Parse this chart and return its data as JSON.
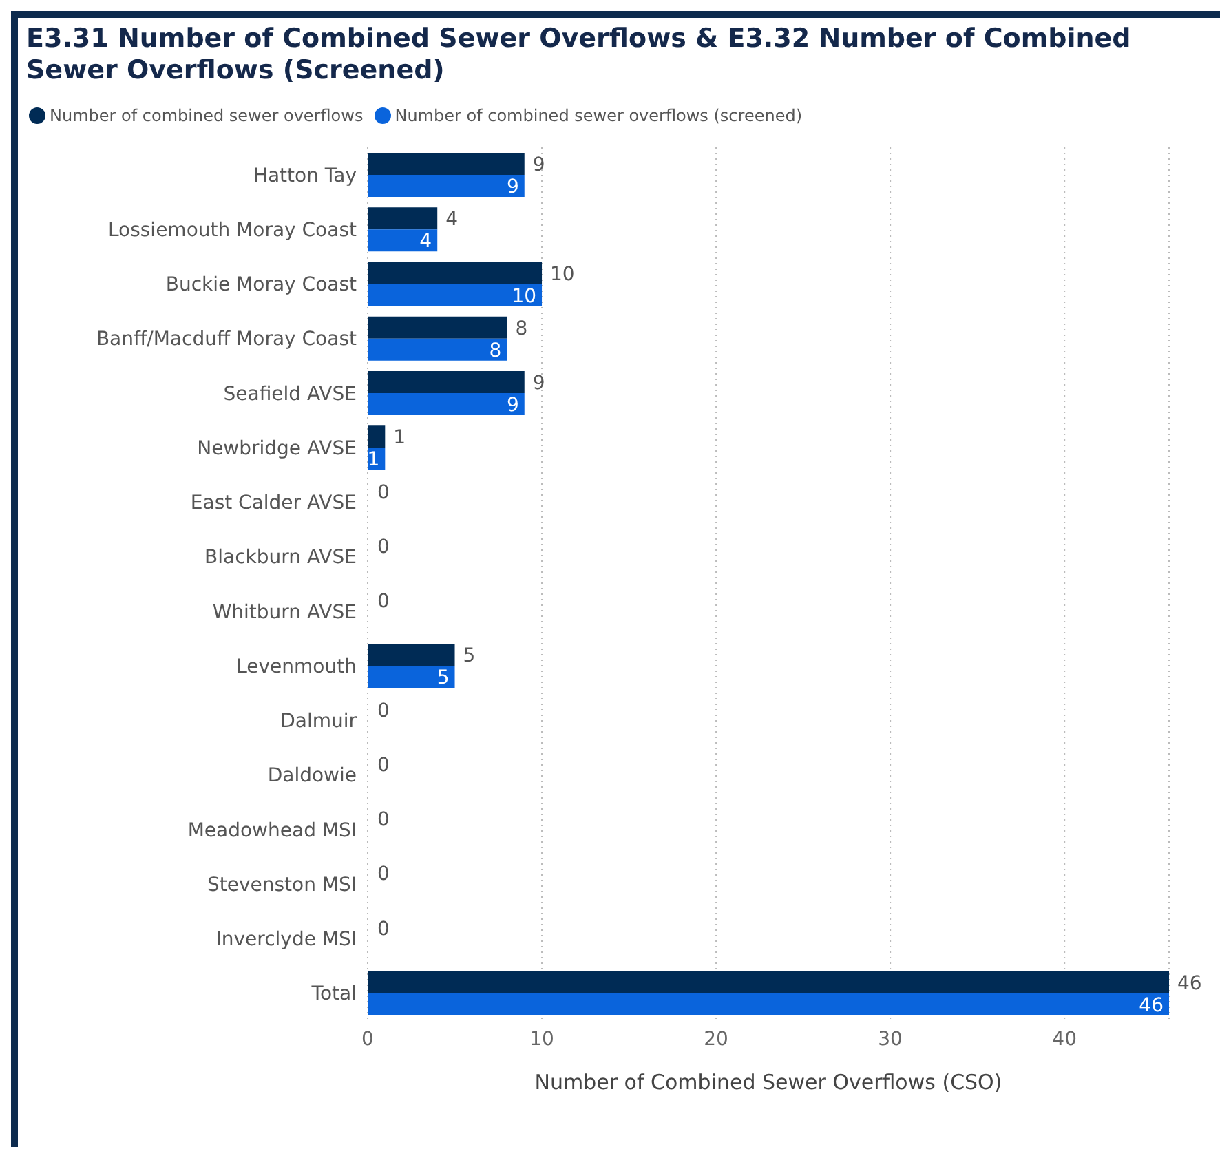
{
  "chart_data": {
    "type": "bar",
    "orientation": "horizontal",
    "title": "E3.31 Number of Combined Sewer Overflows & E3.32 Number of Combined Sewer Overflows (Screened)",
    "xlabel": "Number of Combined Sewer Overflows (CSO)",
    "categories": [
      "Hatton Tay",
      "Lossiemouth Moray Coast",
      "Buckie Moray Coast",
      "Banff/Macduff Moray Coast",
      "Seafield AVSE",
      "Newbridge AVSE",
      "East Calder AVSE",
      "Blackburn AVSE",
      "Whitburn AVSE",
      "Levenmouth",
      "Dalmuir",
      "Daldowie",
      "Meadowhead MSI",
      "Stevenston MSI",
      "Inverclyde MSI",
      "Total"
    ],
    "series": [
      {
        "name": "Number of combined sewer overflows",
        "color": "#002b55",
        "values": [
          9,
          4,
          10,
          8,
          9,
          1,
          0,
          0,
          0,
          5,
          0,
          0,
          0,
          0,
          0,
          46
        ],
        "value_labels": [
          "9",
          "4",
          "10",
          "8",
          "9",
          "1",
          "0",
          "0",
          "0",
          "5",
          "0",
          "0",
          "0",
          "0",
          "0",
          "46"
        ]
      },
      {
        "name": "Number of combined sewer overflows (screened)",
        "color": "#0a64dc",
        "values": [
          9,
          4,
          10,
          8,
          9,
          1,
          0,
          0,
          0,
          5,
          0,
          0,
          0,
          0,
          0,
          46
        ],
        "value_labels": [
          "9",
          "4",
          "10",
          "8",
          "9",
          "1",
          null,
          null,
          null,
          "5",
          null,
          null,
          null,
          null,
          null,
          "46"
        ]
      }
    ],
    "xlim": [
      0,
      46
    ],
    "xticks": [
      0,
      10,
      20,
      30,
      40
    ],
    "grid": "x",
    "legend": "top left"
  }
}
